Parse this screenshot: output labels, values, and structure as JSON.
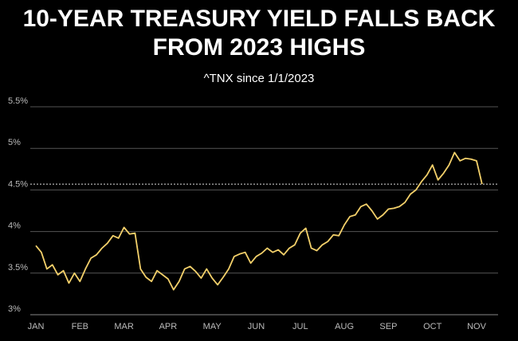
{
  "chart_data": {
    "type": "line",
    "title": "10-YEAR TREASURY YIELD FALLS BACK FROM 2023 HIGHS",
    "subtitle": "^TNX since 1/1/2023",
    "categories": [
      "JAN",
      null,
      null,
      null,
      null,
      null,
      null,
      null,
      "FEB",
      null,
      null,
      null,
      null,
      null,
      null,
      null,
      "MAR",
      null,
      null,
      null,
      null,
      null,
      null,
      null,
      "APR",
      null,
      null,
      null,
      null,
      null,
      null,
      null,
      "MAY",
      null,
      null,
      null,
      null,
      null,
      null,
      null,
      "JUN",
      null,
      null,
      null,
      null,
      null,
      null,
      null,
      "JUL",
      null,
      null,
      null,
      null,
      null,
      null,
      null,
      "AUG",
      null,
      null,
      null,
      null,
      null,
      null,
      null,
      "SEP",
      null,
      null,
      null,
      null,
      null,
      null,
      null,
      "OCT",
      null,
      null,
      null,
      null,
      null,
      null,
      null,
      "NOV",
      null
    ],
    "values": [
      3.83,
      3.75,
      3.55,
      3.6,
      3.48,
      3.53,
      3.38,
      3.5,
      3.4,
      3.55,
      3.68,
      3.72,
      3.8,
      3.86,
      3.95,
      3.92,
      4.05,
      3.97,
      3.98,
      3.55,
      3.45,
      3.4,
      3.53,
      3.48,
      3.43,
      3.3,
      3.4,
      3.55,
      3.58,
      3.52,
      3.44,
      3.55,
      3.44,
      3.36,
      3.45,
      3.55,
      3.7,
      3.73,
      3.75,
      3.62,
      3.7,
      3.74,
      3.8,
      3.75,
      3.78,
      3.72,
      3.8,
      3.84,
      3.98,
      4.04,
      3.8,
      3.77,
      3.84,
      3.88,
      3.96,
      3.95,
      4.08,
      4.18,
      4.2,
      4.3,
      4.33,
      4.25,
      4.15,
      4.2,
      4.27,
      4.28,
      4.3,
      4.35,
      4.45,
      4.5,
      4.6,
      4.68,
      4.8,
      4.62,
      4.7,
      4.8,
      4.95,
      4.85,
      4.88,
      4.87,
      4.85,
      4.57
    ],
    "color": "#f3d06a",
    "reference_line": 4.57,
    "ylim": [
      3,
      5.5
    ],
    "yticks": [
      {
        "value": 3,
        "label": "3%"
      },
      {
        "value": 3.5,
        "label": "3.5%"
      },
      {
        "value": 4,
        "label": "4%"
      },
      {
        "value": 4.5,
        "label": "4.5%"
      },
      {
        "value": 5,
        "label": "5%"
      },
      {
        "value": 5.5,
        "label": "5.5%"
      }
    ],
    "grid": true
  }
}
